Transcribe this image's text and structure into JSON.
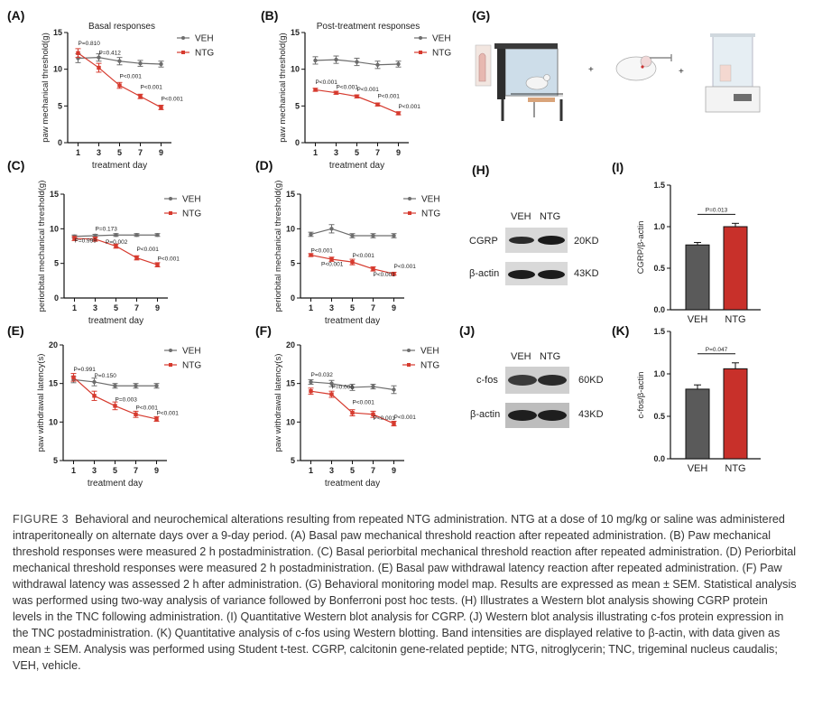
{
  "figure": {
    "label": "FIGURE 3",
    "caption": "Behavioral and neurochemical alterations resulting from repeated NTG administration. NTG at a dose of 10 mg/kg or saline was administered intraperitoneally on alternate days over a 9-day period. (A) Basal paw mechanical threshold reaction after repeated administration. (B) Paw mechanical threshold responses were measured 2 h postadministration. (C) Basal periorbital mechanical threshold reaction after repeated administration. (D) Periorbital mechanical threshold responses were measured 2 h postadministration. (E) Basal paw withdrawal latency reaction after repeated administration. (F) Paw withdrawal latency was assessed 2 h after administration. (G) Behavioral monitoring model map. Results are expressed as mean ± SEM. Statistical analysis was performed using two-way analysis of variance followed by Bonferroni post hoc tests. (H) Illustrates a Western blot analysis showing CGRP protein levels in the TNC following administration. (I) Quantitative Western blot analysis for CGRP. (J) Western blot analysis illustrating c-fos protein expression in the TNC postadministration. (K) Quantitative analysis of c-fos using Western blotting. Band intensities are displayed relative to β-actin, with data given as mean ± SEM. Analysis was performed using Student t-test. CGRP, calcitonin gene-related peptide; NTG, nitroglycerin; TNC, trigeminal nucleus caudalis; VEH, vehicle."
  },
  "colors": {
    "veh": "#6d6d6d",
    "ntg": "#d63a2e",
    "bar_veh": "#5a5a5a",
    "bar_ntg": "#c8302a"
  },
  "panels": {
    "G": {
      "letter": "(G)",
      "plus": [
        "+",
        "+"
      ]
    },
    "H": {
      "letter": "(H)",
      "lanes": [
        "VEH",
        "NTG"
      ],
      "rows": [
        {
          "protein": "CGRP",
          "kd": "20KD"
        },
        {
          "protein": "β-actin",
          "kd": "43KD"
        }
      ]
    },
    "J": {
      "letter": "(J)",
      "lanes": [
        "VEH",
        "NTG"
      ],
      "rows": [
        {
          "protein": "c-fos",
          "kd": "60KD"
        },
        {
          "protein": "β-actin",
          "kd": "43KD"
        }
      ]
    }
  },
  "chart_data": [
    {
      "id": "A",
      "letter": "(A)",
      "type": "line",
      "title": "Basal responses",
      "xlabel": "treatment day",
      "ylabel": "paw mechanical threshold(g)",
      "x": [
        1,
        3,
        5,
        7,
        9
      ],
      "xticks": [
        "1",
        "3",
        "5",
        "7",
        "9"
      ],
      "ylim": [
        0,
        15
      ],
      "yticks": [
        0,
        5,
        10,
        15
      ],
      "series": [
        {
          "name": "VEH",
          "values": [
            11.5,
            11.6,
            11.1,
            10.8,
            10.7
          ],
          "err": [
            0.6,
            0.5,
            0.5,
            0.4,
            0.4
          ]
        },
        {
          "name": "NTG",
          "values": [
            12.2,
            10.2,
            7.8,
            6.3,
            4.8
          ],
          "err": [
            0.6,
            0.6,
            0.4,
            0.3,
            0.3
          ]
        }
      ],
      "annotations": [
        {
          "text": "P=0.810",
          "x": 1,
          "y": 13.3
        },
        {
          "text": "P=0.412",
          "x": 3,
          "y": 12.0
        },
        {
          "text": "P<0.001",
          "x": 5,
          "y": 8.8
        },
        {
          "text": "P<0.001",
          "x": 7,
          "y": 7.3
        },
        {
          "text": "P<0.001",
          "x": 9,
          "y": 5.7
        }
      ],
      "legend": "top-right"
    },
    {
      "id": "B",
      "letter": "(B)",
      "type": "line",
      "title": "Post-treatment responses",
      "xlabel": "treatment day",
      "ylabel": "paw mechanical threshold(g)",
      "x": [
        1,
        3,
        5,
        7,
        9
      ],
      "xticks": [
        "1",
        "3",
        "5",
        "7",
        "9"
      ],
      "ylim": [
        0,
        15
      ],
      "yticks": [
        0,
        5,
        10,
        15
      ],
      "series": [
        {
          "name": "VEH",
          "values": [
            11.2,
            11.3,
            11.0,
            10.6,
            10.7
          ],
          "err": [
            0.5,
            0.5,
            0.5,
            0.5,
            0.4
          ]
        },
        {
          "name": "NTG",
          "values": [
            7.2,
            6.8,
            6.3,
            5.2,
            4.0
          ],
          "err": [
            0.2,
            0.2,
            0.2,
            0.2,
            0.2
          ]
        }
      ],
      "annotations": [
        {
          "text": "P<0.001",
          "x": 1,
          "y": 8.0
        },
        {
          "text": "P<0.001",
          "x": 3,
          "y": 7.3
        },
        {
          "text": "P<0.001",
          "x": 5,
          "y": 7.0
        },
        {
          "text": "P<0.001",
          "x": 7,
          "y": 6.1
        },
        {
          "text": "P<0.001",
          "x": 9,
          "y": 4.7
        }
      ],
      "legend": "top-right"
    },
    {
      "id": "C",
      "letter": "(C)",
      "type": "line",
      "title": "",
      "xlabel": "treatment day",
      "ylabel": "periorbital mechanical threshold(g)",
      "x": [
        1,
        3,
        5,
        7,
        9
      ],
      "xticks": [
        "1",
        "3",
        "5",
        "7",
        "9"
      ],
      "ylim": [
        0,
        15
      ],
      "yticks": [
        0,
        5,
        10,
        15
      ],
      "series": [
        {
          "name": "VEH",
          "values": [
            8.9,
            9.0,
            9.1,
            9.1,
            9.1
          ],
          "err": [
            0.2,
            0.2,
            0.2,
            0.2,
            0.2
          ]
        },
        {
          "name": "NTG",
          "values": [
            8.6,
            8.5,
            7.5,
            5.8,
            4.8
          ],
          "err": [
            0.3,
            0.3,
            0.3,
            0.3,
            0.3
          ]
        }
      ],
      "annotations": [
        {
          "text": "P=0.173",
          "x": 3,
          "y": 9.7
        },
        {
          "text": "P=0.999",
          "x": 1,
          "y": 8.0
        },
        {
          "text": "P=0.002",
          "x": 4,
          "y": 7.8
        },
        {
          "text": "P<0.001",
          "x": 7,
          "y": 6.8
        },
        {
          "text": "P<0.001",
          "x": 9,
          "y": 5.4
        }
      ],
      "legend": "top-right"
    },
    {
      "id": "D",
      "letter": "(D)",
      "type": "line",
      "title": "",
      "xlabel": "treatment day",
      "ylabel": "periorbital mechanical threshold(g)",
      "x": [
        1,
        3,
        5,
        7,
        9
      ],
      "xticks": [
        "1",
        "3",
        "5",
        "7",
        "9"
      ],
      "ylim": [
        0,
        15
      ],
      "yticks": [
        0,
        5,
        10,
        15
      ],
      "series": [
        {
          "name": "VEH",
          "values": [
            9.2,
            10.0,
            9.0,
            9.0,
            9.0
          ],
          "err": [
            0.3,
            0.6,
            0.3,
            0.3,
            0.3
          ]
        },
        {
          "name": "NTG",
          "values": [
            6.2,
            5.6,
            5.2,
            4.2,
            3.5
          ],
          "err": [
            0.2,
            0.3,
            0.4,
            0.3,
            0.2
          ]
        }
      ],
      "annotations": [
        {
          "text": "P<0.001",
          "x": 1,
          "y": 6.6
        },
        {
          "text": "P<0.001",
          "x": 2,
          "y": 4.6
        },
        {
          "text": "P<0.001",
          "x": 5,
          "y": 5.9
        },
        {
          "text": "P<0.001",
          "x": 7,
          "y": 3.1
        },
        {
          "text": "P<0.001",
          "x": 9,
          "y": 4.3
        }
      ],
      "legend": "top-right"
    },
    {
      "id": "E",
      "letter": "(E)",
      "type": "line",
      "title": "",
      "xlabel": "treatment day",
      "ylabel": "paw withdrawal latency(s)",
      "x": [
        1,
        3,
        5,
        7,
        9
      ],
      "xticks": [
        "1",
        "3",
        "5",
        "7",
        "9"
      ],
      "ylim": [
        5,
        20
      ],
      "yticks": [
        5,
        10,
        15,
        20
      ],
      "series": [
        {
          "name": "VEH",
          "values": [
            15.5,
            15.2,
            14.7,
            14.7,
            14.7
          ],
          "err": [
            0.4,
            0.5,
            0.3,
            0.3,
            0.3
          ]
        },
        {
          "name": "NTG",
          "values": [
            15.8,
            13.4,
            12.1,
            11.0,
            10.4
          ],
          "err": [
            0.5,
            0.6,
            0.5,
            0.4,
            0.3
          ]
        }
      ],
      "annotations": [
        {
          "text": "P=0.991",
          "x": 1,
          "y": 16.6
        },
        {
          "text": "P=0.150",
          "x": 3,
          "y": 15.8
        },
        {
          "text": "P=0.003",
          "x": 5,
          "y": 12.7
        },
        {
          "text": "P<0.001",
          "x": 7,
          "y": 11.6
        },
        {
          "text": "P<0.001",
          "x": 9,
          "y": 10.9
        }
      ],
      "legend": "top-right"
    },
    {
      "id": "F",
      "letter": "(F)",
      "type": "line",
      "title": "",
      "xlabel": "treatment day",
      "ylabel": "paw withdrawal latency(s)",
      "x": [
        1,
        3,
        5,
        7,
        9
      ],
      "xticks": [
        "1",
        "3",
        "5",
        "7",
        "9"
      ],
      "ylim": [
        5,
        20
      ],
      "yticks": [
        5,
        10,
        15,
        20
      ],
      "series": [
        {
          "name": "VEH",
          "values": [
            15.2,
            15.0,
            14.5,
            14.6,
            14.2
          ],
          "err": [
            0.3,
            0.4,
            0.4,
            0.3,
            0.5
          ]
        },
        {
          "name": "NTG",
          "values": [
            14.0,
            13.6,
            11.2,
            11.0,
            9.8
          ],
          "err": [
            0.4,
            0.4,
            0.4,
            0.4,
            0.3
          ]
        }
      ],
      "annotations": [
        {
          "text": "P=0.032",
          "x": 1,
          "y": 15.9
        },
        {
          "text": "P=0.006",
          "x": 3,
          "y": 14.3
        },
        {
          "text": "P<0.001",
          "x": 5,
          "y": 12.3
        },
        {
          "text": "P<0.001",
          "x": 7,
          "y": 10.3
        },
        {
          "text": "P<0.001",
          "x": 9,
          "y": 10.4
        }
      ],
      "legend": "top-right"
    },
    {
      "id": "I",
      "letter": "(I)",
      "type": "bar",
      "title": "",
      "categories": [
        "VEH",
        "NTG"
      ],
      "values": [
        0.78,
        1.0
      ],
      "err": [
        0.03,
        0.04
      ],
      "ylabel": "CGRP/β-actin",
      "ylim": [
        0,
        1.5
      ],
      "yticks": [
        "0.0",
        "0.5",
        "1.0",
        "1.5"
      ],
      "significance": "P=0.013"
    },
    {
      "id": "K",
      "letter": "(K)",
      "type": "bar",
      "title": "",
      "categories": [
        "VEH",
        "NTG"
      ],
      "values": [
        0.82,
        1.06
      ],
      "err": [
        0.05,
        0.07
      ],
      "ylabel": "c-fos/β-actin",
      "ylim": [
        0,
        1.5
      ],
      "yticks": [
        "0.0",
        "0.5",
        "1.0",
        "1.5"
      ],
      "significance": "P=0.047"
    }
  ]
}
